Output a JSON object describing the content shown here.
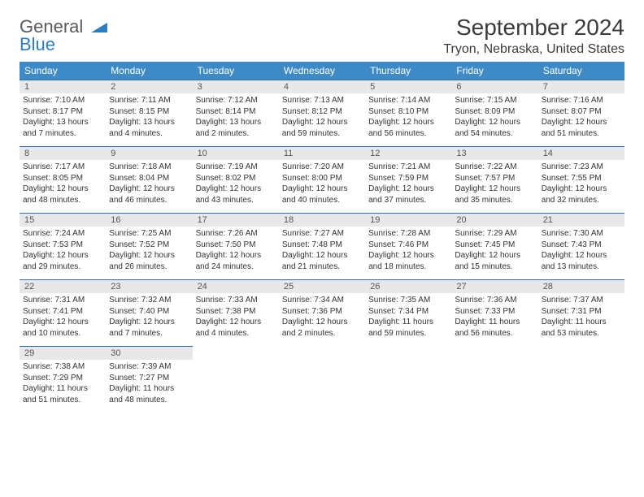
{
  "logo": {
    "line1": "General",
    "line2": "Blue"
  },
  "title": "September 2024",
  "location": "Tryon, Nebraska, United States",
  "colors": {
    "header_bg": "#3d8ac7",
    "header_text": "#ffffff",
    "row_border": "#2f6da8",
    "daynum_bg": "#e8e8e8",
    "body_text": "#333333",
    "logo_gray": "#5a5a5a",
    "logo_blue": "#2e7cc0"
  },
  "weekdays": [
    "Sunday",
    "Monday",
    "Tuesday",
    "Wednesday",
    "Thursday",
    "Friday",
    "Saturday"
  ],
  "days": [
    {
      "n": 1,
      "sr": "7:10 AM",
      "ss": "8:17 PM",
      "dl": "13 hours and 7 minutes."
    },
    {
      "n": 2,
      "sr": "7:11 AM",
      "ss": "8:15 PM",
      "dl": "13 hours and 4 minutes."
    },
    {
      "n": 3,
      "sr": "7:12 AM",
      "ss": "8:14 PM",
      "dl": "13 hours and 2 minutes."
    },
    {
      "n": 4,
      "sr": "7:13 AM",
      "ss": "8:12 PM",
      "dl": "12 hours and 59 minutes."
    },
    {
      "n": 5,
      "sr": "7:14 AM",
      "ss": "8:10 PM",
      "dl": "12 hours and 56 minutes."
    },
    {
      "n": 6,
      "sr": "7:15 AM",
      "ss": "8:09 PM",
      "dl": "12 hours and 54 minutes."
    },
    {
      "n": 7,
      "sr": "7:16 AM",
      "ss": "8:07 PM",
      "dl": "12 hours and 51 minutes."
    },
    {
      "n": 8,
      "sr": "7:17 AM",
      "ss": "8:05 PM",
      "dl": "12 hours and 48 minutes."
    },
    {
      "n": 9,
      "sr": "7:18 AM",
      "ss": "8:04 PM",
      "dl": "12 hours and 46 minutes."
    },
    {
      "n": 10,
      "sr": "7:19 AM",
      "ss": "8:02 PM",
      "dl": "12 hours and 43 minutes."
    },
    {
      "n": 11,
      "sr": "7:20 AM",
      "ss": "8:00 PM",
      "dl": "12 hours and 40 minutes."
    },
    {
      "n": 12,
      "sr": "7:21 AM",
      "ss": "7:59 PM",
      "dl": "12 hours and 37 minutes."
    },
    {
      "n": 13,
      "sr": "7:22 AM",
      "ss": "7:57 PM",
      "dl": "12 hours and 35 minutes."
    },
    {
      "n": 14,
      "sr": "7:23 AM",
      "ss": "7:55 PM",
      "dl": "12 hours and 32 minutes."
    },
    {
      "n": 15,
      "sr": "7:24 AM",
      "ss": "7:53 PM",
      "dl": "12 hours and 29 minutes."
    },
    {
      "n": 16,
      "sr": "7:25 AM",
      "ss": "7:52 PM",
      "dl": "12 hours and 26 minutes."
    },
    {
      "n": 17,
      "sr": "7:26 AM",
      "ss": "7:50 PM",
      "dl": "12 hours and 24 minutes."
    },
    {
      "n": 18,
      "sr": "7:27 AM",
      "ss": "7:48 PM",
      "dl": "12 hours and 21 minutes."
    },
    {
      "n": 19,
      "sr": "7:28 AM",
      "ss": "7:46 PM",
      "dl": "12 hours and 18 minutes."
    },
    {
      "n": 20,
      "sr": "7:29 AM",
      "ss": "7:45 PM",
      "dl": "12 hours and 15 minutes."
    },
    {
      "n": 21,
      "sr": "7:30 AM",
      "ss": "7:43 PM",
      "dl": "12 hours and 13 minutes."
    },
    {
      "n": 22,
      "sr": "7:31 AM",
      "ss": "7:41 PM",
      "dl": "12 hours and 10 minutes."
    },
    {
      "n": 23,
      "sr": "7:32 AM",
      "ss": "7:40 PM",
      "dl": "12 hours and 7 minutes."
    },
    {
      "n": 24,
      "sr": "7:33 AM",
      "ss": "7:38 PM",
      "dl": "12 hours and 4 minutes."
    },
    {
      "n": 25,
      "sr": "7:34 AM",
      "ss": "7:36 PM",
      "dl": "12 hours and 2 minutes."
    },
    {
      "n": 26,
      "sr": "7:35 AM",
      "ss": "7:34 PM",
      "dl": "11 hours and 59 minutes."
    },
    {
      "n": 27,
      "sr": "7:36 AM",
      "ss": "7:33 PM",
      "dl": "11 hours and 56 minutes."
    },
    {
      "n": 28,
      "sr": "7:37 AM",
      "ss": "7:31 PM",
      "dl": "11 hours and 53 minutes."
    },
    {
      "n": 29,
      "sr": "7:38 AM",
      "ss": "7:29 PM",
      "dl": "11 hours and 51 minutes."
    },
    {
      "n": 30,
      "sr": "7:39 AM",
      "ss": "7:27 PM",
      "dl": "11 hours and 48 minutes."
    }
  ],
  "labels": {
    "sunrise": "Sunrise:",
    "sunset": "Sunset:",
    "daylight": "Daylight:"
  },
  "layout": {
    "start_weekday": 0,
    "total_days": 30,
    "cols": 7
  }
}
